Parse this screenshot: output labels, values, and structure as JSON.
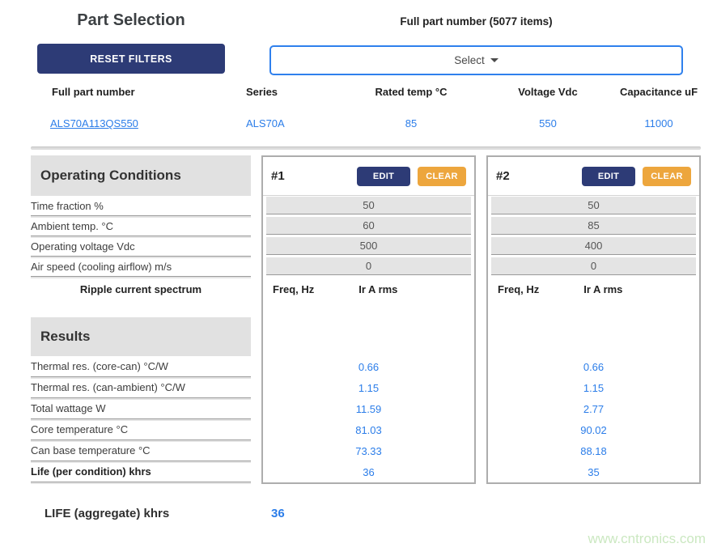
{
  "page": {
    "title": "Part Selection",
    "dropdown_label": "Full part number (5077 items)",
    "reset_button": "RESET FILTERS",
    "select_placeholder": "Select",
    "watermark": "www.cntronics.com"
  },
  "colors": {
    "navy_button": "#2d3b76",
    "orange_button": "#eda63d",
    "value_blue": "#2b7de9",
    "select_border_blue": "#2f80ed",
    "section_header_gray": "#e1e1e1",
    "cell_gray": "#e4e4e4",
    "watermark_green": "#cbe8c1"
  },
  "parts_table": {
    "headers": [
      "Full part number",
      "Series",
      "Rated temp °C",
      "Voltage Vdc",
      "Capacitance uF"
    ],
    "row": {
      "part_number": "ALS70A113QS550",
      "series": "ALS70A",
      "rated_temp": "85",
      "voltage": "550",
      "capacitance": "11000"
    }
  },
  "operating_conditions": {
    "title": "Operating Conditions",
    "labels": [
      "Time fraction %",
      "Ambient temp. °C",
      "Operating voltage Vdc",
      "Air speed (cooling airflow) m/s"
    ],
    "spectrum_label": "Ripple current spectrum"
  },
  "results": {
    "title": "Results",
    "labels": [
      "Thermal res. (core-can) °C/W",
      "Thermal res. (can-ambient) °C/W",
      "Total wattage W",
      "Core temperature °C",
      "Can base temperature °C",
      "Life (per condition) khrs"
    ]
  },
  "conditions": [
    {
      "id": "#1",
      "edit_label": "EDIT",
      "clear_label": "CLEAR",
      "freq_header": "Freq, Hz",
      "ir_header": "Ir A rms",
      "values": [
        "50",
        "60",
        "500",
        "0"
      ],
      "results": [
        "0.66",
        "1.15",
        "11.59",
        "81.03",
        "73.33",
        "36"
      ]
    },
    {
      "id": "#2",
      "edit_label": "EDIT",
      "clear_label": "CLEAR",
      "freq_header": "Freq, Hz",
      "ir_header": "Ir A rms",
      "values": [
        "50",
        "85",
        "400",
        "0"
      ],
      "results": [
        "0.66",
        "1.15",
        "2.77",
        "90.02",
        "88.18",
        "35"
      ]
    }
  ],
  "aggregate": {
    "label": "LIFE (aggregate) khrs",
    "value": "36"
  }
}
